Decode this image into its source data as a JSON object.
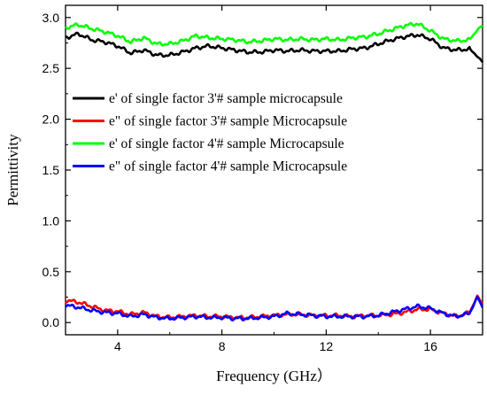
{
  "chart_data": {
    "type": "line",
    "title": "",
    "xlabel": "Frequency (GHz）",
    "ylabel": "Permittivity",
    "xlim": [
      2,
      18
    ],
    "ylim": [
      -0.12,
      3.12
    ],
    "xticks": [
      4,
      8,
      12,
      16
    ],
    "xtick_labels": [
      "4",
      "8",
      "12",
      "16"
    ],
    "yticks": [
      0.0,
      0.5,
      1.0,
      1.5,
      2.0,
      2.5,
      3.0
    ],
    "ytick_labels": [
      "0.0",
      "0.5",
      "1.0",
      "1.5",
      "2.0",
      "2.5",
      "3.0"
    ],
    "grid": false,
    "legend_position": "upper-left",
    "series": [
      {
        "name": "e' of single factor 3'# sample microcapsule",
        "color": "#000000",
        "x": [
          2.0,
          2.5,
          3.0,
          3.5,
          4.0,
          4.5,
          5.0,
          5.5,
          6.0,
          6.5,
          7.0,
          7.5,
          8.0,
          8.5,
          9.0,
          9.5,
          10.0,
          10.5,
          11.0,
          11.5,
          12.0,
          12.5,
          13.0,
          13.5,
          14.0,
          14.5,
          15.0,
          15.5,
          16.0,
          16.5,
          17.0,
          17.5,
          17.8,
          18.0
        ],
        "y": [
          2.8,
          2.84,
          2.78,
          2.76,
          2.72,
          2.65,
          2.68,
          2.63,
          2.63,
          2.66,
          2.7,
          2.72,
          2.7,
          2.68,
          2.66,
          2.66,
          2.68,
          2.67,
          2.68,
          2.67,
          2.67,
          2.67,
          2.69,
          2.7,
          2.74,
          2.78,
          2.81,
          2.83,
          2.79,
          2.7,
          2.68,
          2.69,
          2.62,
          2.56
        ]
      },
      {
        "name": "e\" of single factor 3'# sample Microcapsule",
        "color": "#ff0000",
        "x": [
          2.0,
          2.5,
          3.0,
          3.5,
          4.0,
          4.5,
          5.0,
          5.5,
          6.0,
          6.5,
          7.0,
          7.5,
          8.0,
          8.5,
          9.0,
          9.5,
          10.0,
          10.5,
          11.0,
          11.5,
          12.0,
          12.5,
          13.0,
          13.5,
          14.0,
          14.5,
          15.0,
          15.5,
          16.0,
          16.5,
          17.0,
          17.5,
          17.8,
          18.0
        ],
        "y": [
          0.22,
          0.2,
          0.16,
          0.12,
          0.11,
          0.08,
          0.1,
          0.06,
          0.05,
          0.06,
          0.07,
          0.06,
          0.06,
          0.05,
          0.05,
          0.06,
          0.07,
          0.08,
          0.08,
          0.07,
          0.07,
          0.07,
          0.06,
          0.07,
          0.07,
          0.08,
          0.1,
          0.13,
          0.13,
          0.09,
          0.06,
          0.1,
          0.26,
          0.18
        ]
      },
      {
        "name": "e' of single factor 4'# sample Microcapsule",
        "color": "#00ff00",
        "x": [
          2.0,
          2.5,
          3.0,
          3.5,
          4.0,
          4.5,
          5.0,
          5.5,
          6.0,
          6.5,
          7.0,
          7.5,
          8.0,
          8.5,
          9.0,
          9.5,
          10.0,
          10.5,
          11.0,
          11.5,
          12.0,
          12.5,
          13.0,
          13.5,
          14.0,
          14.5,
          15.0,
          15.5,
          16.0,
          16.5,
          17.0,
          17.5,
          17.8,
          18.0
        ],
        "y": [
          2.9,
          2.93,
          2.89,
          2.86,
          2.82,
          2.76,
          2.8,
          2.74,
          2.74,
          2.77,
          2.82,
          2.8,
          2.79,
          2.78,
          2.76,
          2.77,
          2.79,
          2.78,
          2.79,
          2.78,
          2.79,
          2.78,
          2.8,
          2.81,
          2.84,
          2.88,
          2.92,
          2.94,
          2.87,
          2.79,
          2.77,
          2.78,
          2.88,
          2.92
        ]
      },
      {
        "name": "e\" of single factor 4'# sample Microcapsule",
        "color": "#0000ff",
        "x": [
          2.0,
          2.5,
          3.0,
          3.5,
          4.0,
          4.5,
          5.0,
          5.5,
          6.0,
          6.5,
          7.0,
          7.5,
          8.0,
          8.5,
          9.0,
          9.5,
          10.0,
          10.5,
          11.0,
          11.5,
          12.0,
          12.5,
          13.0,
          13.5,
          14.0,
          14.5,
          15.0,
          15.5,
          16.0,
          16.5,
          17.0,
          17.5,
          17.8,
          18.0
        ],
        "y": [
          0.17,
          0.15,
          0.12,
          0.1,
          0.09,
          0.06,
          0.08,
          0.05,
          0.04,
          0.05,
          0.06,
          0.05,
          0.05,
          0.04,
          0.04,
          0.05,
          0.06,
          0.09,
          0.08,
          0.07,
          0.06,
          0.06,
          0.06,
          0.06,
          0.07,
          0.1,
          0.13,
          0.16,
          0.14,
          0.09,
          0.06,
          0.09,
          0.25,
          0.15
        ]
      }
    ]
  }
}
